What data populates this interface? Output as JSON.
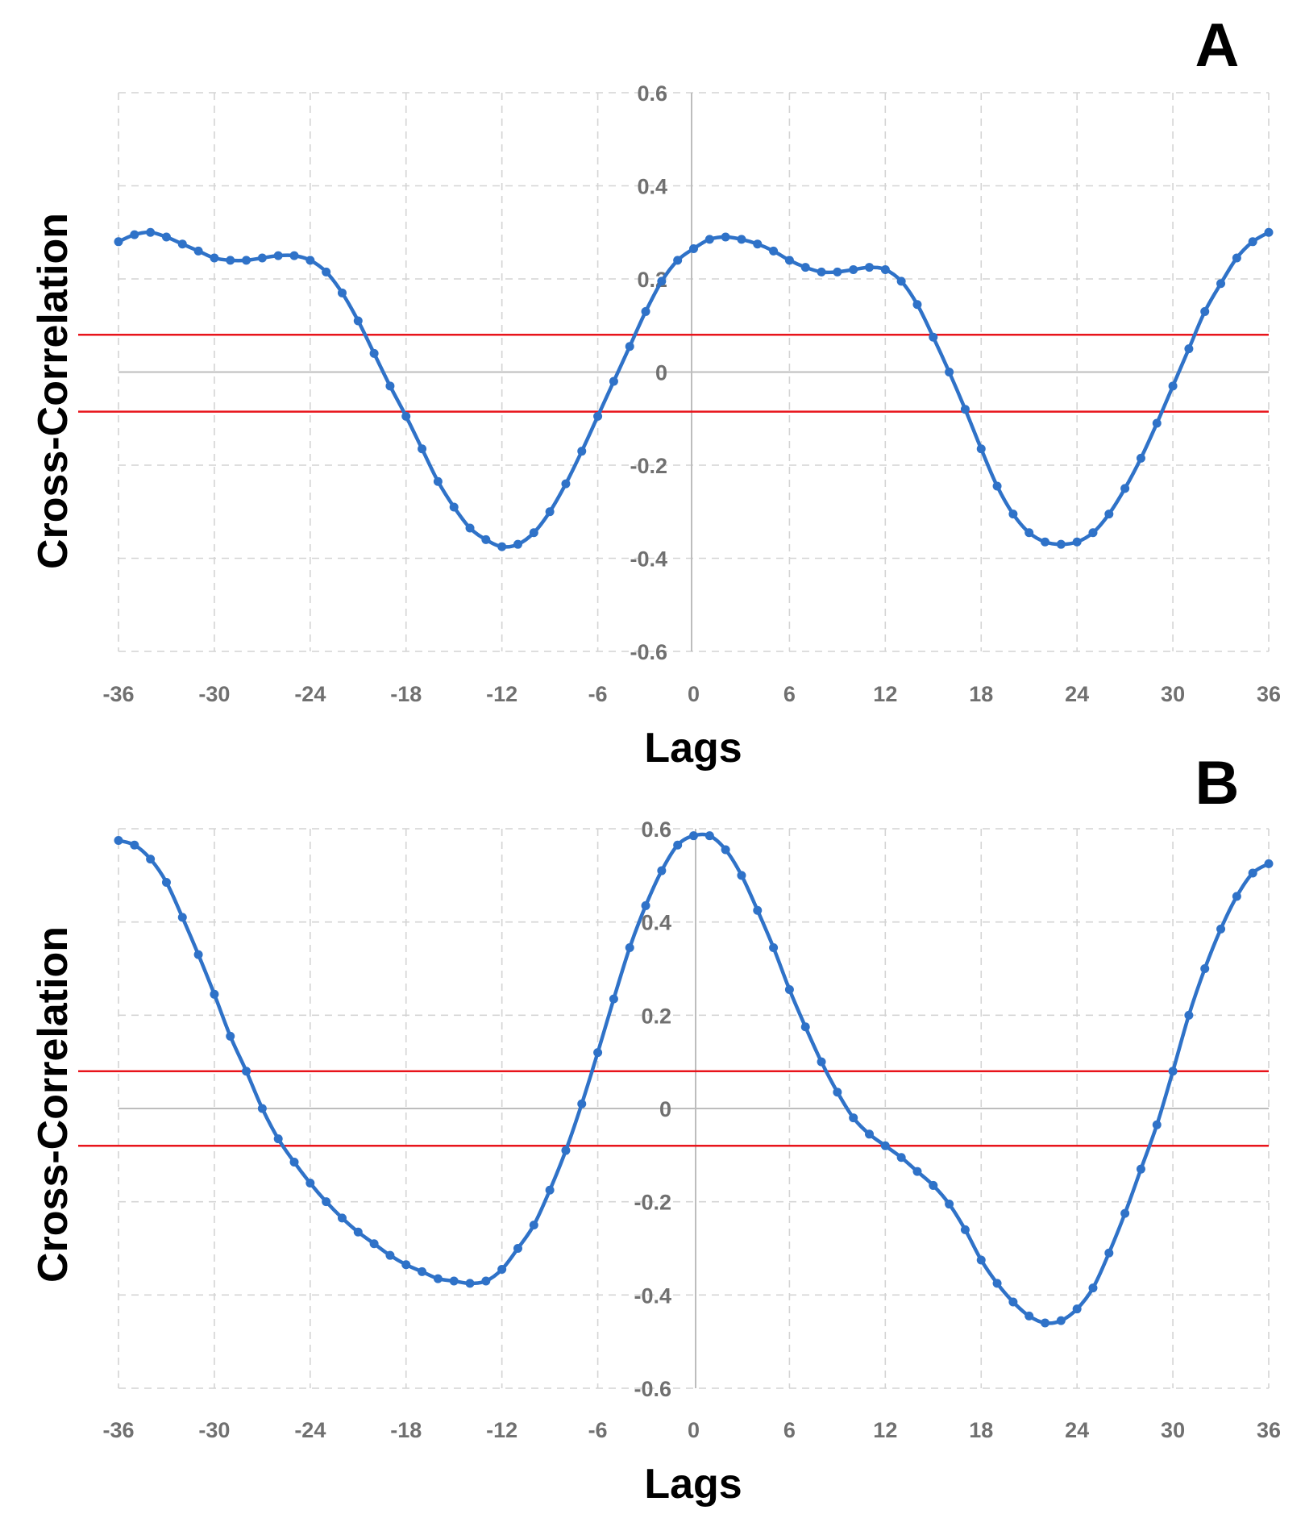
{
  "colors": {
    "series": "#2f72c8",
    "threshold": "#e8141b",
    "grid": "#d4d4d4",
    "zero_axis": "#bdbdbd",
    "tick_label": "#707070"
  },
  "chart_data": [
    {
      "panel_label": "A",
      "type": "line",
      "xlabel": "Lags",
      "ylabel": "Cross-Correlation",
      "xlim": [
        -36,
        36
      ],
      "ylim": [
        -0.6,
        0.6
      ],
      "xticks": [
        "-36",
        "-30",
        "-24",
        "-18",
        "-12",
        "-6",
        "0",
        "6",
        "12",
        "18",
        "24",
        "30",
        "36"
      ],
      "yticks": [
        "0.6",
        "0.4",
        "0.2",
        "0",
        "-0.2",
        "-0.4",
        "-0.6"
      ],
      "grid": true,
      "threshold_lines": [
        0.08,
        -0.085
      ],
      "x": [
        -36,
        -35,
        -34,
        -33,
        -32,
        -31,
        -30,
        -29,
        -28,
        -27,
        -26,
        -25,
        -24,
        -23,
        -22,
        -21,
        -20,
        -19,
        -18,
        -17,
        -16,
        -15,
        -14,
        -13,
        -12,
        -11,
        -10,
        -9,
        -8,
        -7,
        -6,
        -5,
        -4,
        -3,
        -2,
        -1,
        0,
        1,
        2,
        3,
        4,
        5,
        6,
        7,
        8,
        9,
        10,
        11,
        12,
        13,
        14,
        15,
        16,
        17,
        18,
        19,
        20,
        21,
        22,
        23,
        24,
        25,
        26,
        27,
        28,
        29,
        30,
        31,
        32,
        33,
        34,
        35,
        36
      ],
      "values": [
        0.28,
        0.295,
        0.3,
        0.29,
        0.275,
        0.26,
        0.245,
        0.24,
        0.24,
        0.245,
        0.25,
        0.25,
        0.24,
        0.215,
        0.17,
        0.11,
        0.04,
        -0.03,
        -0.095,
        -0.165,
        -0.235,
        -0.29,
        -0.335,
        -0.36,
        -0.375,
        -0.37,
        -0.345,
        -0.3,
        -0.24,
        -0.17,
        -0.095,
        -0.02,
        0.055,
        0.13,
        0.195,
        0.24,
        0.265,
        0.285,
        0.29,
        0.285,
        0.275,
        0.26,
        0.24,
        0.225,
        0.215,
        0.215,
        0.22,
        0.225,
        0.22,
        0.195,
        0.145,
        0.075,
        0.0,
        -0.08,
        -0.165,
        -0.245,
        -0.305,
        -0.345,
        -0.365,
        -0.37,
        -0.365,
        -0.345,
        -0.305,
        -0.25,
        -0.185,
        -0.11,
        -0.03,
        0.05,
        0.13,
        0.19,
        0.245,
        0.28,
        0.3
      ]
    },
    {
      "panel_label": "B",
      "type": "line",
      "xlabel": "Lags",
      "ylabel": "Cross-Correlation",
      "xlim": [
        -36,
        36
      ],
      "ylim": [
        -0.6,
        0.6
      ],
      "xticks": [
        "-36",
        "-30",
        "-24",
        "-18",
        "-12",
        "-6",
        "0",
        "6",
        "12",
        "18",
        "24",
        "30",
        "36"
      ],
      "yticks": [
        "0.6",
        "0.4",
        "0.2",
        "0",
        "-0.2",
        "-0.4",
        "-0.6"
      ],
      "grid": true,
      "threshold_lines": [
        0.08,
        -0.08
      ],
      "x": [
        -36,
        -35,
        -34,
        -33,
        -32,
        -31,
        -30,
        -29,
        -28,
        -27,
        -26,
        -25,
        -24,
        -23,
        -22,
        -21,
        -20,
        -19,
        -18,
        -17,
        -16,
        -15,
        -14,
        -13,
        -12,
        -11,
        -10,
        -9,
        -8,
        -7,
        -6,
        -5,
        -4,
        -3,
        -2,
        -1,
        0,
        1,
        2,
        3,
        4,
        5,
        6,
        7,
        8,
        9,
        10,
        11,
        12,
        13,
        14,
        15,
        16,
        17,
        18,
        19,
        20,
        21,
        22,
        23,
        24,
        25,
        26,
        27,
        28,
        29,
        30,
        31,
        32,
        33,
        34,
        35,
        36
      ],
      "values": [
        0.575,
        0.565,
        0.535,
        0.485,
        0.41,
        0.33,
        0.245,
        0.155,
        0.08,
        0.0,
        -0.065,
        -0.115,
        -0.16,
        -0.2,
        -0.235,
        -0.265,
        -0.29,
        -0.315,
        -0.335,
        -0.35,
        -0.365,
        -0.37,
        -0.375,
        -0.37,
        -0.345,
        -0.3,
        -0.25,
        -0.175,
        -0.09,
        0.01,
        0.12,
        0.235,
        0.345,
        0.435,
        0.51,
        0.565,
        0.585,
        0.585,
        0.555,
        0.5,
        0.425,
        0.345,
        0.255,
        0.175,
        0.1,
        0.035,
        -0.02,
        -0.055,
        -0.08,
        -0.105,
        -0.135,
        -0.165,
        -0.205,
        -0.26,
        -0.325,
        -0.375,
        -0.415,
        -0.445,
        -0.46,
        -0.455,
        -0.43,
        -0.385,
        -0.31,
        -0.225,
        -0.13,
        -0.035,
        0.08,
        0.2,
        0.3,
        0.385,
        0.455,
        0.505,
        0.525
      ]
    }
  ]
}
